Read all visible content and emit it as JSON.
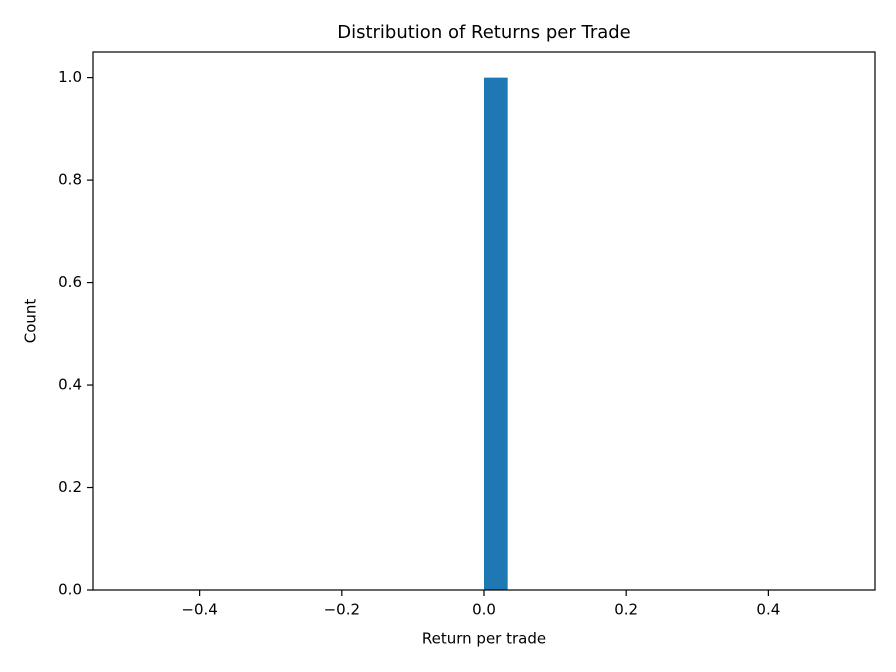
{
  "chart_data": {
    "type": "histogram",
    "title": "Distribution of Returns per Trade",
    "x_label": "Return per trade",
    "y_label": "Count",
    "bins": [
      -0.5,
      -0.4667,
      -0.4333,
      -0.4,
      -0.3667,
      -0.3333,
      -0.3,
      -0.2667,
      -0.2333,
      -0.2,
      -0.1667,
      -0.1333,
      -0.1,
      -0.0667,
      -0.0333,
      0,
      0.0333,
      0.0667,
      0.1,
      0.1333,
      0.1667,
      0.2,
      0.2333,
      0.2667,
      0.3,
      0.3333,
      0.3667,
      0.4,
      0.4333,
      0.4667,
      0.5
    ],
    "values": [
      0,
      0,
      0,
      0,
      0,
      0,
      0,
      0,
      0,
      0,
      0,
      0,
      0,
      0,
      0,
      1,
      0,
      0,
      0,
      0,
      0,
      0,
      0,
      0,
      0,
      0,
      0,
      0,
      0,
      0
    ],
    "color": "#1f77b4",
    "xlim": [
      -0.55,
      0.55
    ],
    "xticks": [
      {
        "value": -0.4,
        "label": "−0.4"
      },
      {
        "value": -0.2,
        "label": "−0.2"
      },
      {
        "value": 0,
        "label": "0.0"
      },
      0.2,
      0.4
    ],
    "ylim": [
      0,
      1.05
    ],
    "yticks": [
      {
        "value": 0,
        "label": "0.0"
      },
      0.2,
      0.4,
      0.6,
      0.8,
      {
        "value": 1,
        "label": "1.0"
      }
    ],
    "grid": false
  }
}
